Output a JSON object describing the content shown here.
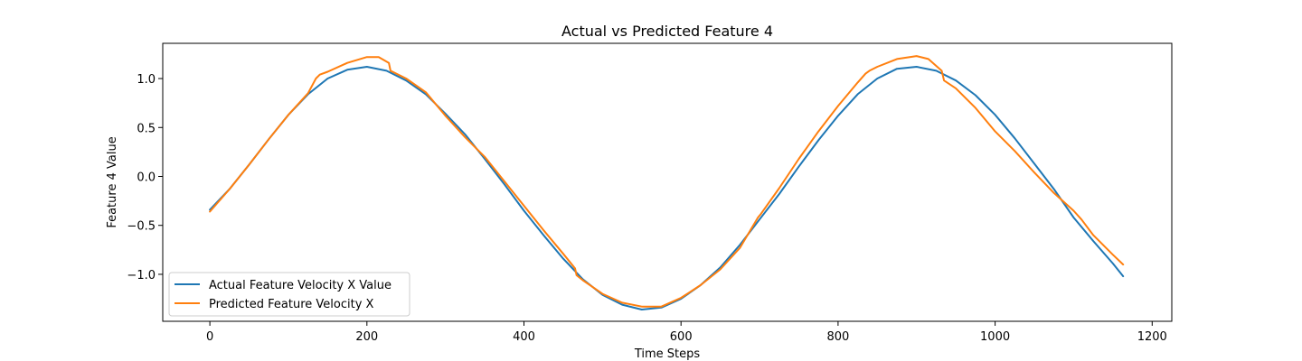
{
  "chart_data": {
    "type": "line",
    "title": "Actual vs Predicted Feature 4",
    "xlabel": "Time Steps",
    "ylabel": "Feature 4 Value",
    "xlim": [
      -60,
      1225
    ],
    "ylim": [
      -1.48,
      1.36
    ],
    "xticks": [
      0,
      200,
      400,
      600,
      800,
      1000,
      1200
    ],
    "xtick_labels": [
      "0",
      "200",
      "400",
      "600",
      "800",
      "1000",
      "1200"
    ],
    "yticks": [
      -1.0,
      -0.5,
      0.0,
      0.5,
      1.0
    ],
    "ytick_labels": [
      "−1.0",
      "−0.5",
      "0.0",
      "0.5",
      "1.0"
    ],
    "grid": false,
    "legend_position": "lower-left",
    "series": [
      {
        "name": "Actual Feature Velocity X Value",
        "color": "#1f77b4",
        "x": [
          0,
          25,
          50,
          75,
          100,
          125,
          150,
          175,
          200,
          225,
          250,
          275,
          300,
          325,
          350,
          375,
          400,
          425,
          450,
          475,
          500,
          525,
          550,
          575,
          600,
          625,
          650,
          675,
          700,
          725,
          750,
          775,
          800,
          825,
          850,
          875,
          900,
          925,
          950,
          975,
          1000,
          1025,
          1050,
          1075,
          1100,
          1125,
          1150,
          1163
        ],
        "y": [
          -0.34,
          -0.13,
          0.12,
          0.38,
          0.63,
          0.84,
          1.0,
          1.09,
          1.12,
          1.08,
          0.98,
          0.84,
          0.64,
          0.43,
          0.18,
          -0.08,
          -0.35,
          -0.6,
          -0.84,
          -1.05,
          -1.21,
          -1.31,
          -1.36,
          -1.34,
          -1.25,
          -1.11,
          -0.93,
          -0.7,
          -0.44,
          -0.18,
          0.1,
          0.37,
          0.62,
          0.84,
          1.0,
          1.1,
          1.12,
          1.08,
          0.98,
          0.83,
          0.63,
          0.39,
          0.13,
          -0.13,
          -0.42,
          -0.66,
          -0.89,
          -1.02
        ]
      },
      {
        "name": "Predicted Feature Velocity X",
        "color": "#ff7f0e",
        "x": [
          0,
          25,
          50,
          75,
          100,
          125,
          135,
          140,
          150,
          175,
          200,
          215,
          228,
          230,
          250,
          275,
          300,
          325,
          350,
          375,
          400,
          425,
          450,
          465,
          467,
          475,
          500,
          525,
          550,
          575,
          600,
          625,
          650,
          675,
          698,
          702,
          725,
          750,
          775,
          800,
          825,
          835,
          840,
          850,
          875,
          900,
          915,
          932,
          935,
          950,
          975,
          1000,
          1025,
          1050,
          1075,
          1100,
          1110,
          1125,
          1150,
          1163
        ],
        "y": [
          -0.36,
          -0.13,
          0.12,
          0.38,
          0.63,
          0.85,
          1.0,
          1.04,
          1.07,
          1.16,
          1.22,
          1.22,
          1.16,
          1.08,
          1.0,
          0.86,
          0.62,
          0.4,
          0.2,
          -0.05,
          -0.3,
          -0.55,
          -0.79,
          -0.94,
          -1.01,
          -1.06,
          -1.2,
          -1.29,
          -1.33,
          -1.33,
          -1.24,
          -1.11,
          -0.95,
          -0.73,
          -0.42,
          -0.38,
          -0.12,
          0.18,
          0.46,
          0.72,
          0.96,
          1.05,
          1.08,
          1.12,
          1.2,
          1.23,
          1.2,
          1.08,
          0.98,
          0.9,
          0.7,
          0.46,
          0.26,
          0.04,
          -0.17,
          -0.35,
          -0.44,
          -0.6,
          -0.8,
          -0.9
        ]
      }
    ]
  }
}
